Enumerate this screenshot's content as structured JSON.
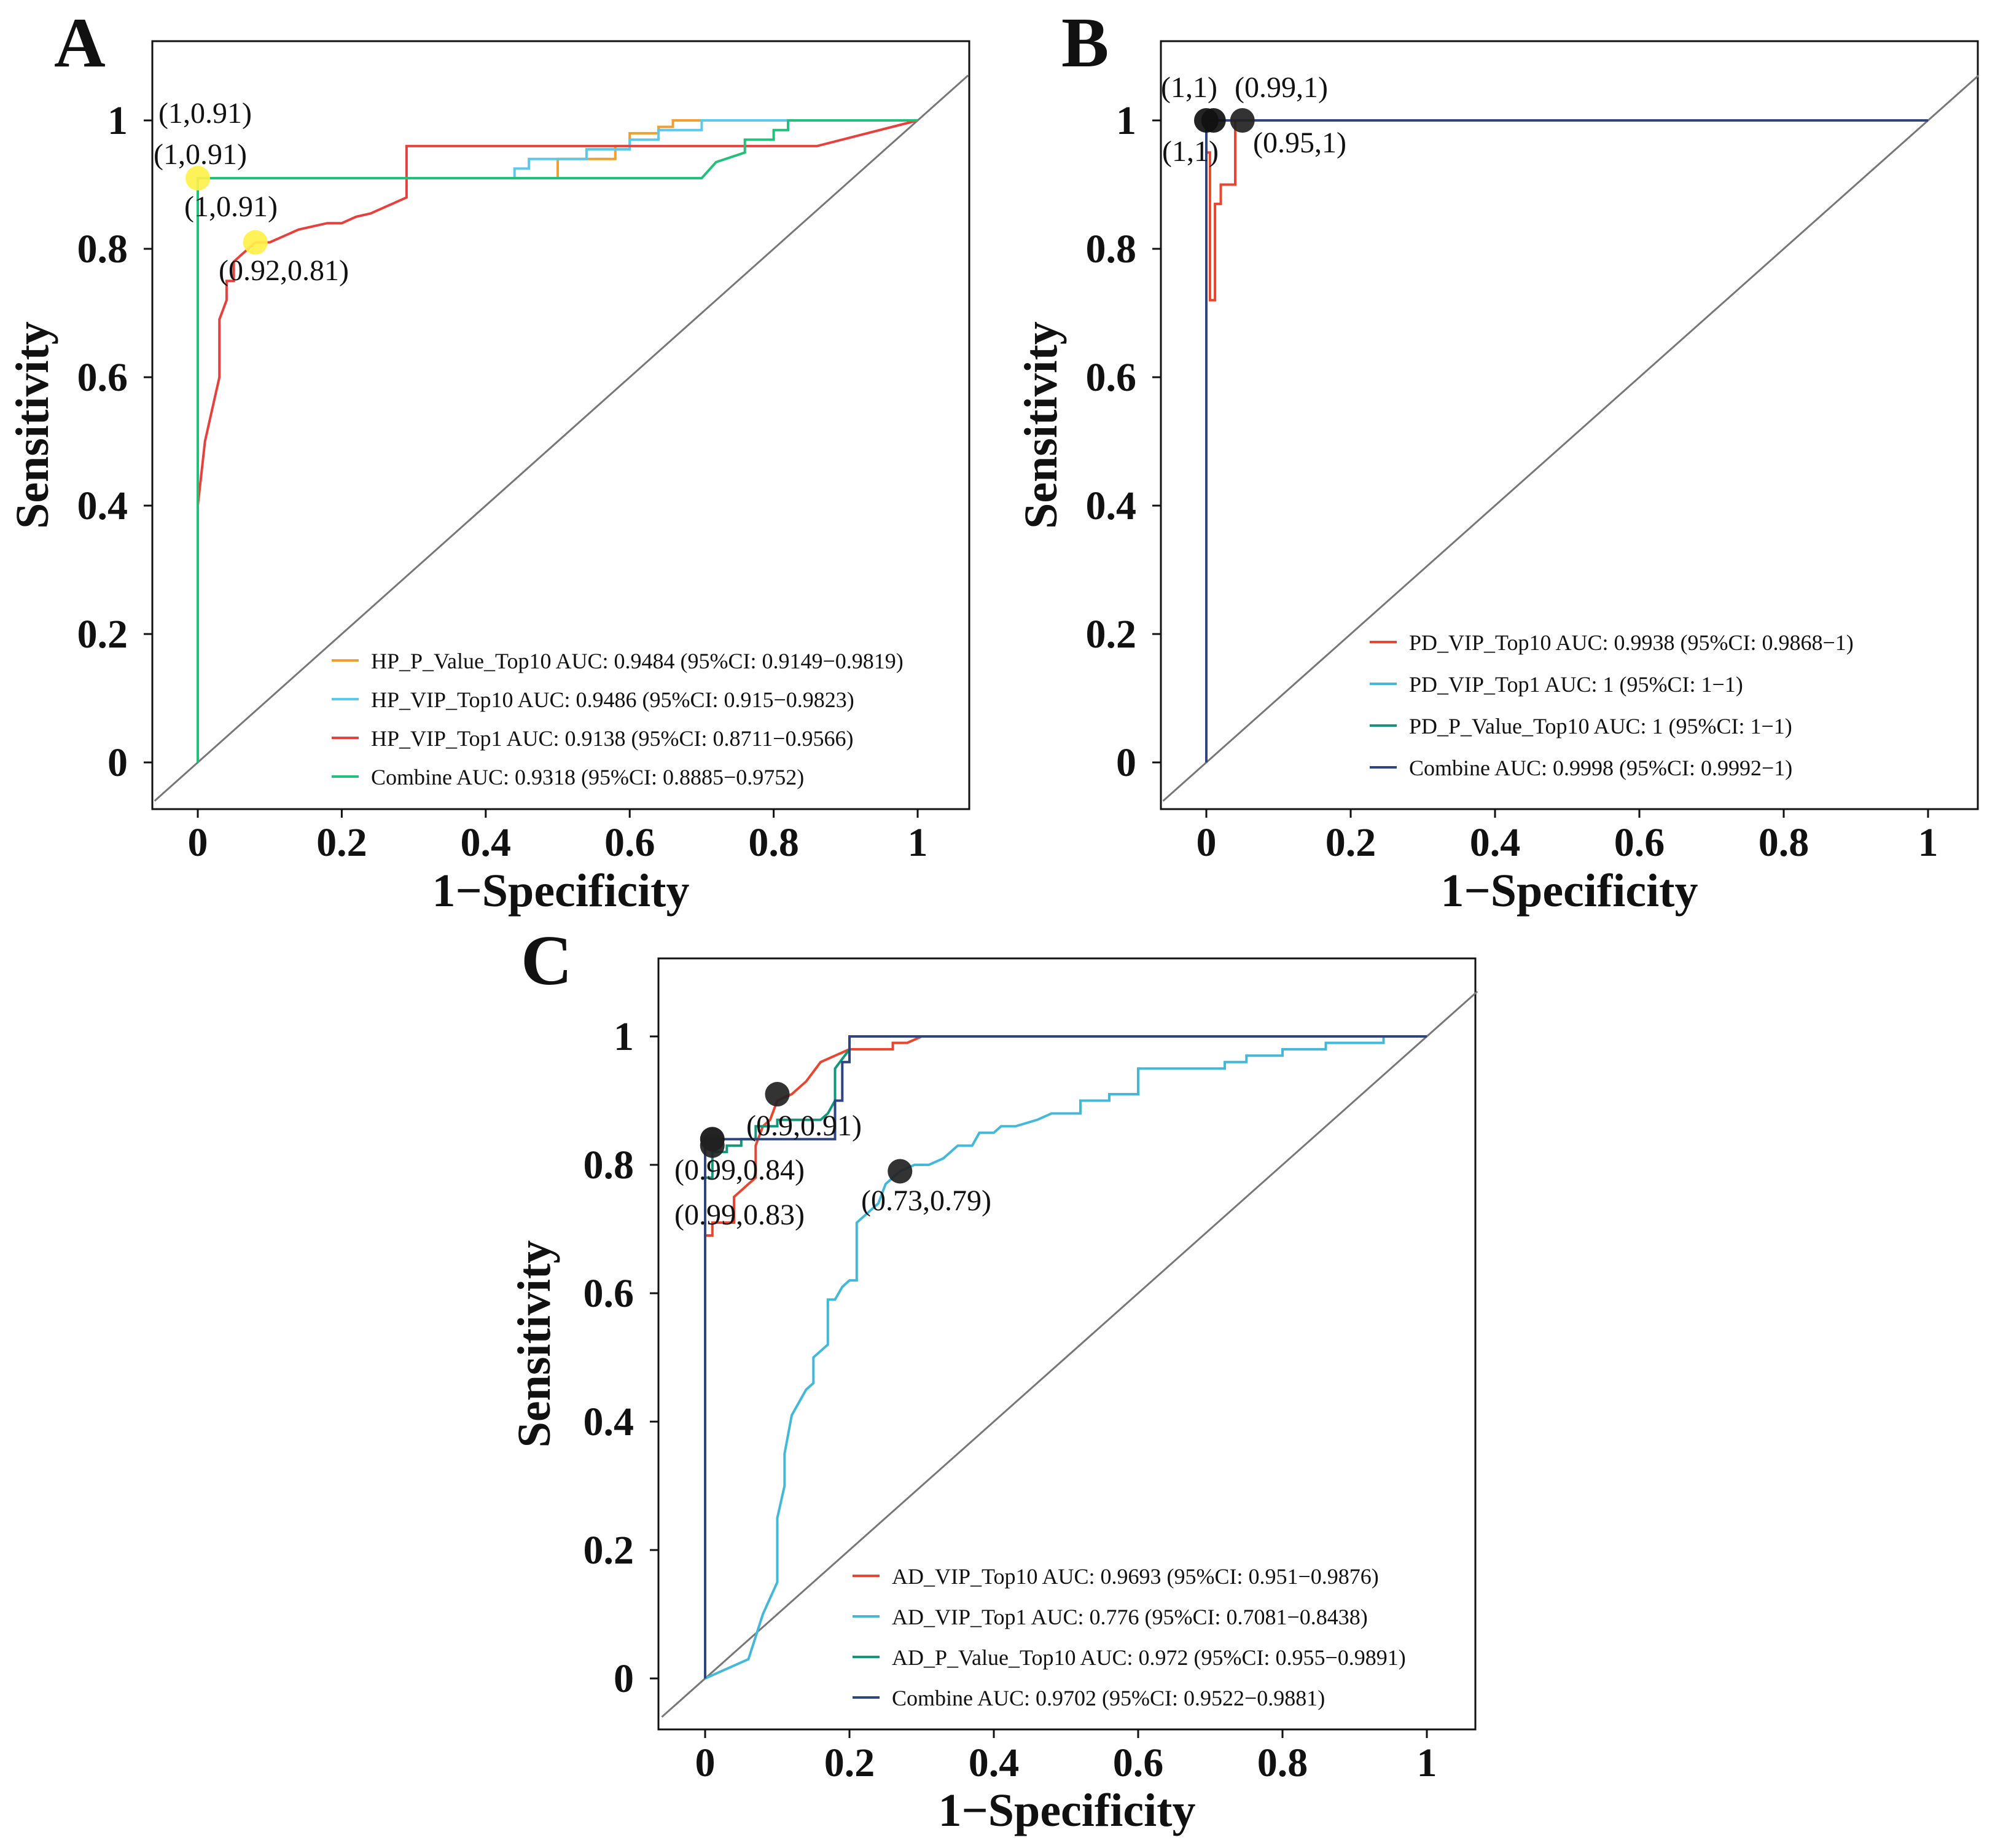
{
  "chart_data": [
    {
      "panel": "A",
      "type": "line",
      "xlabel": "1−Specificity",
      "ylabel": "Sensitivity",
      "xlim": [
        -0.06,
        1.07
      ],
      "ylim": [
        -0.07,
        1.07
      ],
      "xticks": [
        0,
        0.2,
        0.4,
        0.6,
        0.8,
        1
      ],
      "xtick_labels": [
        "0",
        "0.2",
        "0.4",
        "0.6",
        "0.8",
        "1"
      ],
      "yticks": [
        0,
        0.2,
        0.4,
        0.6,
        0.8,
        1
      ],
      "ytick_labels": [
        "0",
        "0.2",
        "0.4",
        "0.6",
        "0.8",
        "1"
      ],
      "diagonal": true,
      "legend_position": "bottom-right",
      "series": [
        {
          "name": "HP_P_Value_Top10 AUC: 0.9484 (95%CI: 0.9149−0.9819)",
          "color": "#F0A030",
          "points": [
            [
              0,
              0
            ],
            [
              0,
              0.91
            ],
            [
              0.5,
              0.91
            ],
            [
              0.5,
              0.94
            ],
            [
              0.58,
              0.94
            ],
            [
              0.58,
              0.96
            ],
            [
              0.6,
              0.96
            ],
            [
              0.6,
              0.98
            ],
            [
              0.64,
              0.98
            ],
            [
              0.64,
              0.99
            ],
            [
              0.66,
              0.99
            ],
            [
              0.66,
              1
            ],
            [
              0.8,
              1
            ],
            [
              1,
              1
            ]
          ]
        },
        {
          "name": "HP_VIP_Top10 AUC: 0.9486 (95%CI: 0.915−0.9823)",
          "color": "#5BC8EE",
          "points": [
            [
              0,
              0
            ],
            [
              0,
              0.91
            ],
            [
              0.44,
              0.91
            ],
            [
              0.44,
              0.925
            ],
            [
              0.46,
              0.925
            ],
            [
              0.46,
              0.94
            ],
            [
              0.54,
              0.94
            ],
            [
              0.54,
              0.955
            ],
            [
              0.6,
              0.955
            ],
            [
              0.6,
              0.97
            ],
            [
              0.64,
              0.97
            ],
            [
              0.64,
              0.985
            ],
            [
              0.7,
              0.985
            ],
            [
              0.7,
              1
            ],
            [
              1,
              1
            ]
          ]
        },
        {
          "name": "HP_VIP_Top1 AUC: 0.9138 (95%CI: 0.8711−0.9566)",
          "color": "#E8403C",
          "points": [
            [
              0,
              0.4
            ],
            [
              0.005,
              0.45
            ],
            [
              0.01,
              0.5
            ],
            [
              0.02,
              0.55
            ],
            [
              0.03,
              0.6
            ],
            [
              0.03,
              0.69
            ],
            [
              0.04,
              0.72
            ],
            [
              0.04,
              0.75
            ],
            [
              0.05,
              0.75
            ],
            [
              0.05,
              0.78
            ],
            [
              0.06,
              0.79
            ],
            [
              0.07,
              0.8
            ],
            [
              0.08,
              0.81
            ],
            [
              0.1,
              0.81
            ],
            [
              0.12,
              0.82
            ],
            [
              0.14,
              0.83
            ],
            [
              0.16,
              0.835
            ],
            [
              0.18,
              0.84
            ],
            [
              0.2,
              0.84
            ],
            [
              0.22,
              0.85
            ],
            [
              0.24,
              0.855
            ],
            [
              0.26,
              0.865
            ],
            [
              0.27,
              0.87
            ],
            [
              0.28,
              0.875
            ],
            [
              0.29,
              0.88
            ],
            [
              0.29,
              0.96
            ],
            [
              0.86,
              0.96
            ],
            [
              1,
              1
            ]
          ]
        },
        {
          "name": "Combine AUC: 0.9318 (95%CI: 0.8885−0.9752)",
          "color": "#22C07A",
          "points": [
            [
              0,
              0
            ],
            [
              0,
              0.91
            ],
            [
              0.7,
              0.91
            ],
            [
              0.72,
              0.935
            ],
            [
              0.76,
              0.95
            ],
            [
              0.76,
              0.97
            ],
            [
              0.8,
              0.97
            ],
            [
              0.8,
              0.985
            ],
            [
              0.82,
              0.985
            ],
            [
              0.82,
              1
            ],
            [
              1,
              1
            ]
          ]
        }
      ],
      "markers": [
        {
          "x": 0,
          "y": 0.91,
          "color": "#FFF04A"
        },
        {
          "x": 0.08,
          "y": 0.81,
          "color": "#FFF04A"
        }
      ],
      "annotations": [
        {
          "text": "(1,0.91)",
          "x": 0,
          "y": 0.91
        },
        {
          "text": "(1,0.91)",
          "x": 0,
          "y": 0.91
        },
        {
          "text": "(1,0.91)",
          "x": 0,
          "y": 0.91
        },
        {
          "text": "(0.92,0.81)",
          "x": 0.08,
          "y": 0.81
        }
      ]
    },
    {
      "panel": "B",
      "type": "line",
      "xlabel": "1−Specificity",
      "ylabel": "Sensitivity",
      "xlim": [
        -0.06,
        1.07
      ],
      "ylim": [
        -0.07,
        1.07
      ],
      "xticks": [
        0,
        0.2,
        0.4,
        0.6,
        0.8,
        1
      ],
      "xtick_labels": [
        "0",
        "0.2",
        "0.4",
        "0.6",
        "0.8",
        "1"
      ],
      "yticks": [
        0,
        0.2,
        0.4,
        0.6,
        0.8,
        1
      ],
      "ytick_labels": [
        "0",
        "0.2",
        "0.4",
        "0.6",
        "0.8",
        "1"
      ],
      "diagonal": true,
      "legend_position": "bottom-right",
      "series": [
        {
          "name": "PD_VIP_Top10 AUC: 0.9938 (95%CI: 0.9868−1)",
          "color": "#E8462F",
          "points": [
            [
              0,
              0
            ],
            [
              0,
              0.95
            ],
            [
              0.005,
              0.95
            ],
            [
              0.005,
              0.72
            ],
            [
              0.012,
              0.72
            ],
            [
              0.012,
              0.87
            ],
            [
              0.02,
              0.87
            ],
            [
              0.02,
              0.9
            ],
            [
              0.04,
              0.9
            ],
            [
              0.04,
              1
            ],
            [
              1,
              1
            ]
          ]
        },
        {
          "name": "PD_VIP_Top1 AUC: 1 (95%CI: 1−1)",
          "color": "#43B8D8",
          "points": [
            [
              0,
              0
            ],
            [
              0,
              1
            ],
            [
              1,
              1
            ]
          ]
        },
        {
          "name": "PD_P_Value_Top10 AUC: 1 (95%CI: 1−1)",
          "color": "#14967A",
          "points": [
            [
              0,
              0
            ],
            [
              0,
              1
            ],
            [
              1,
              1
            ]
          ]
        },
        {
          "name": "Combine AUC: 0.9998 (95%CI: 0.9992−1)",
          "color": "#2E4582",
          "points": [
            [
              0,
              0
            ],
            [
              0,
              1
            ],
            [
              1,
              1
            ]
          ]
        }
      ],
      "markers": [
        {
          "x": 0,
          "y": 1,
          "color": "#111111"
        },
        {
          "x": 0.01,
          "y": 1,
          "color": "#111111"
        },
        {
          "x": 0.05,
          "y": 1,
          "color": "#222222"
        }
      ],
      "annotations": [
        {
          "text": "(1,1)",
          "x": 0,
          "y": 1
        },
        {
          "text": "(0.99,1)",
          "x": 0.01,
          "y": 1
        },
        {
          "text": "(1,1)",
          "x": 0,
          "y": 1
        },
        {
          "text": "(0.95,1)",
          "x": 0.05,
          "y": 1
        }
      ]
    },
    {
      "panel": "C",
      "type": "line",
      "xlabel": "1−Specificity",
      "ylabel": "Sensitivity",
      "xlim": [
        -0.06,
        1.07
      ],
      "ylim": [
        -0.07,
        1.07
      ],
      "xticks": [
        0,
        0.2,
        0.4,
        0.6,
        0.8,
        1
      ],
      "xtick_labels": [
        "0",
        "0.2",
        "0.4",
        "0.6",
        "0.8",
        "1"
      ],
      "yticks": [
        0,
        0.2,
        0.4,
        0.6,
        0.8,
        1
      ],
      "ytick_labels": [
        "0",
        "0.2",
        "0.4",
        "0.6",
        "0.8",
        "1"
      ],
      "diagonal": true,
      "legend_position": "bottom-right",
      "series": [
        {
          "name": "AD_VIP_Top10 AUC: 0.9693 (95%CI: 0.951−0.9876)",
          "color": "#E8462F",
          "points": [
            [
              0,
              0
            ],
            [
              0,
              0.69
            ],
            [
              0.01,
              0.69
            ],
            [
              0.01,
              0.71
            ],
            [
              0.04,
              0.71
            ],
            [
              0.04,
              0.75
            ],
            [
              0.06,
              0.77
            ],
            [
              0.07,
              0.78
            ],
            [
              0.07,
              0.83
            ],
            [
              0.08,
              0.86
            ],
            [
              0.09,
              0.87
            ],
            [
              0.1,
              0.9
            ],
            [
              0.12,
              0.91
            ],
            [
              0.14,
              0.93
            ],
            [
              0.16,
              0.96
            ],
            [
              0.18,
              0.97
            ],
            [
              0.2,
              0.98
            ],
            [
              0.26,
              0.98
            ],
            [
              0.26,
              0.99
            ],
            [
              0.28,
              0.99
            ],
            [
              0.3,
              1
            ],
            [
              1,
              1
            ]
          ]
        },
        {
          "name": "AD_VIP_Top1 AUC: 0.776 (95%CI: 0.7081−0.8438)",
          "color": "#43B8D8",
          "points": [
            [
              0,
              0
            ],
            [
              0.06,
              0.03
            ],
            [
              0.08,
              0.1
            ],
            [
              0.1,
              0.15
            ],
            [
              0.1,
              0.25
            ],
            [
              0.11,
              0.3
            ],
            [
              0.11,
              0.35
            ],
            [
              0.12,
              0.41
            ],
            [
              0.14,
              0.45
            ],
            [
              0.15,
              0.46
            ],
            [
              0.15,
              0.5
            ],
            [
              0.17,
              0.52
            ],
            [
              0.17,
              0.59
            ],
            [
              0.18,
              0.59
            ],
            [
              0.19,
              0.61
            ],
            [
              0.2,
              0.62
            ],
            [
              0.21,
              0.62
            ],
            [
              0.21,
              0.71
            ],
            [
              0.23,
              0.73
            ],
            [
              0.24,
              0.74
            ],
            [
              0.25,
              0.77
            ],
            [
              0.27,
              0.79
            ],
            [
              0.29,
              0.8
            ],
            [
              0.31,
              0.8
            ],
            [
              0.33,
              0.81
            ],
            [
              0.35,
              0.83
            ],
            [
              0.37,
              0.83
            ],
            [
              0.38,
              0.85
            ],
            [
              0.4,
              0.85
            ],
            [
              0.41,
              0.86
            ],
            [
              0.43,
              0.86
            ],
            [
              0.46,
              0.87
            ],
            [
              0.48,
              0.88
            ],
            [
              0.52,
              0.88
            ],
            [
              0.52,
              0.9
            ],
            [
              0.56,
              0.9
            ],
            [
              0.56,
              0.91
            ],
            [
              0.6,
              0.91
            ],
            [
              0.6,
              0.95
            ],
            [
              0.72,
              0.95
            ],
            [
              0.72,
              0.96
            ],
            [
              0.75,
              0.96
            ],
            [
              0.75,
              0.97
            ],
            [
              0.8,
              0.97
            ],
            [
              0.8,
              0.98
            ],
            [
              0.86,
              0.98
            ],
            [
              0.86,
              0.99
            ],
            [
              0.94,
              0.99
            ],
            [
              0.94,
              1
            ],
            [
              1,
              1
            ]
          ]
        },
        {
          "name": "AD_P_Value_Top10 AUC: 0.972 (95%CI: 0.955−0.9891)",
          "color": "#14967A",
          "points": [
            [
              0,
              0
            ],
            [
              0,
              0.78
            ],
            [
              0.01,
              0.78
            ],
            [
              0.01,
              0.82
            ],
            [
              0.03,
              0.82
            ],
            [
              0.03,
              0.83
            ],
            [
              0.05,
              0.83
            ],
            [
              0.05,
              0.84
            ],
            [
              0.07,
              0.84
            ],
            [
              0.07,
              0.86
            ],
            [
              0.1,
              0.86
            ],
            [
              0.1,
              0.87
            ],
            [
              0.16,
              0.87
            ],
            [
              0.17,
              0.88
            ],
            [
              0.18,
              0.9
            ],
            [
              0.18,
              0.95
            ],
            [
              0.2,
              0.98
            ],
            [
              0.2,
              1
            ],
            [
              1,
              1
            ]
          ]
        },
        {
          "name": "Combine AUC: 0.9702 (95%CI: 0.9522−0.9881)",
          "color": "#2E4582",
          "points": [
            [
              0,
              0
            ],
            [
              0,
              0.84
            ],
            [
              0.18,
              0.84
            ],
            [
              0.18,
              0.9
            ],
            [
              0.19,
              0.9
            ],
            [
              0.19,
              0.96
            ],
            [
              0.2,
              0.96
            ],
            [
              0.2,
              1
            ],
            [
              1,
              1
            ]
          ]
        }
      ],
      "markers": [
        {
          "x": 0.01,
          "y": 0.84,
          "color": "#111111"
        },
        {
          "x": 0.01,
          "y": 0.83,
          "color": "#222222"
        },
        {
          "x": 0.1,
          "y": 0.91,
          "color": "#222222"
        },
        {
          "x": 0.27,
          "y": 0.79,
          "color": "#222222"
        }
      ],
      "annotations": [
        {
          "text": "(0.9,0.91)",
          "x": 0.1,
          "y": 0.91
        },
        {
          "text": "(0.99,0.84)",
          "x": 0.01,
          "y": 0.84
        },
        {
          "text": "(0.99,0.83)",
          "x": 0.01,
          "y": 0.83
        },
        {
          "text": "(0.73,0.79)",
          "x": 0.27,
          "y": 0.79
        }
      ]
    }
  ]
}
